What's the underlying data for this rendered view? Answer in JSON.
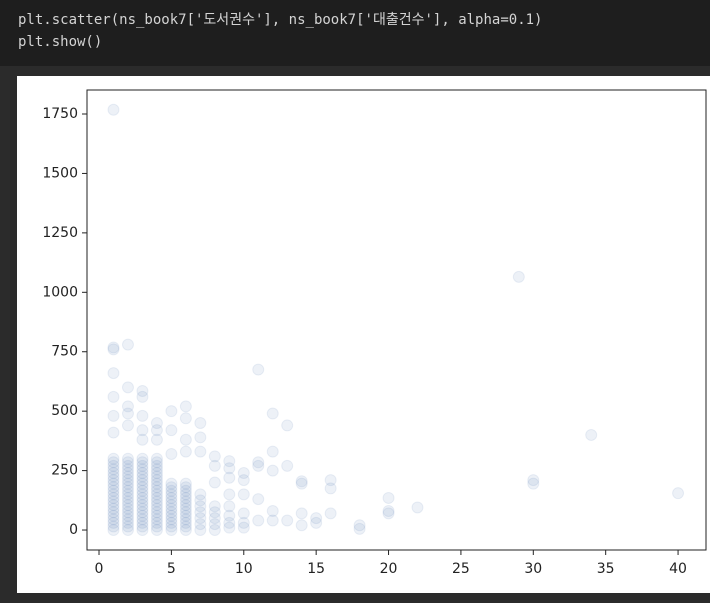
{
  "code": [
    "plt.scatter(ns_book7['도서권수'], ns_book7['대출건수'], alpha=0.1)",
    "plt.show()"
  ],
  "chart_data": {
    "type": "scatter",
    "color": "#4a72b0",
    "alpha": 0.1,
    "xlim": [
      -0.83,
      41.93
    ],
    "ylim": [
      -84,
      1851
    ],
    "xticks": [
      0,
      5,
      10,
      15,
      20,
      25,
      30,
      35,
      40
    ],
    "yticks": [
      0,
      250,
      500,
      750,
      1000,
      1250,
      1500,
      1750
    ],
    "x": [
      1,
      1,
      1,
      1,
      1,
      1,
      1,
      1,
      1,
      1,
      1,
      1,
      1,
      1,
      1,
      1,
      1,
      1,
      1,
      1,
      1,
      2,
      2,
      2,
      2,
      2,
      2,
      2,
      2,
      2,
      2,
      2,
      2,
      2,
      2,
      2,
      2,
      2,
      2,
      2,
      2,
      2,
      3,
      3,
      3,
      3,
      3,
      3,
      3,
      3,
      3,
      3,
      3,
      3,
      3,
      3,
      3,
      3,
      3,
      3,
      3,
      3,
      3,
      4,
      4,
      4,
      4,
      4,
      4,
      4,
      4,
      4,
      4,
      4,
      4,
      4,
      4,
      4,
      4,
      4,
      4,
      4,
      4,
      4,
      5,
      5,
      5,
      5,
      5,
      5,
      5,
      5,
      5,
      5,
      5,
      5,
      5,
      5,
      6,
      6,
      6,
      6,
      6,
      6,
      6,
      6,
      6,
      6,
      6,
      6,
      6,
      6,
      7,
      7,
      7,
      7,
      7,
      7,
      7,
      8,
      8,
      8,
      8,
      8,
      1,
      1,
      1,
      1,
      1,
      1,
      1,
      2,
      2,
      2,
      2,
      2,
      3,
      3,
      3,
      3,
      3,
      4,
      4,
      4,
      5,
      5,
      5,
      6,
      6,
      6,
      6,
      7,
      7,
      7,
      8,
      8,
      8,
      9,
      9,
      9,
      9,
      9,
      9,
      9,
      9,
      10,
      10,
      10,
      10,
      10,
      10,
      11,
      11,
      11,
      11,
      11,
      12,
      12,
      12,
      12,
      12,
      13,
      13,
      13,
      14,
      14,
      14,
      14,
      15,
      15,
      16,
      16,
      16,
      18,
      18,
      20,
      20,
      20,
      22,
      29,
      30,
      30,
      34,
      40
    ],
    "y": [
      0,
      15,
      30,
      45,
      60,
      75,
      90,
      105,
      120,
      135,
      150,
      165,
      180,
      195,
      210,
      225,
      240,
      255,
      270,
      285,
      300,
      0,
      15,
      30,
      45,
      60,
      75,
      90,
      105,
      120,
      135,
      150,
      165,
      180,
      195,
      210,
      225,
      240,
      255,
      270,
      285,
      300,
      0,
      15,
      30,
      45,
      60,
      75,
      90,
      105,
      120,
      135,
      150,
      165,
      180,
      195,
      210,
      225,
      240,
      255,
      270,
      285,
      300,
      0,
      15,
      30,
      45,
      60,
      75,
      90,
      105,
      120,
      135,
      150,
      165,
      180,
      195,
      210,
      225,
      240,
      255,
      270,
      285,
      300,
      0,
      15,
      30,
      45,
      60,
      75,
      90,
      105,
      120,
      135,
      150,
      165,
      180,
      195,
      0,
      15,
      30,
      45,
      60,
      75,
      90,
      105,
      120,
      135,
      150,
      165,
      180,
      195,
      0,
      25,
      50,
      75,
      100,
      125,
      150,
      0,
      25,
      50,
      75,
      100,
      1768,
      768,
      760,
      660,
      560,
      480,
      410,
      780,
      600,
      520,
      490,
      440,
      585,
      560,
      480,
      420,
      380,
      450,
      420,
      380,
      500,
      420,
      320,
      520,
      470,
      380,
      330,
      450,
      390,
      330,
      310,
      270,
      200,
      290,
      260,
      220,
      150,
      100,
      60,
      30,
      10,
      240,
      210,
      150,
      70,
      30,
      10,
      675,
      285,
      270,
      130,
      40,
      490,
      330,
      250,
      80,
      40,
      440,
      270,
      40,
      205,
      195,
      70,
      20,
      50,
      30,
      210,
      175,
      70,
      20,
      5,
      135,
      80,
      70,
      95,
      1065,
      210,
      195,
      400,
      155
    ]
  }
}
